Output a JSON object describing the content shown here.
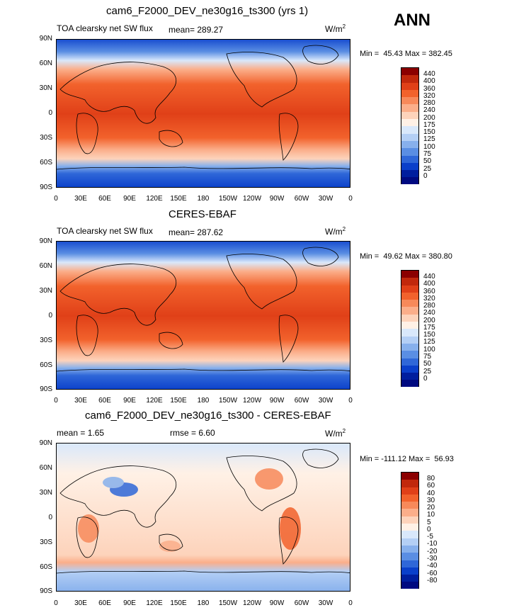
{
  "season": "ANN",
  "panels": [
    {
      "title": "cam6_F2000_DEV_ne30g16_ts300 (yrs 1)",
      "variable": "TOA clearsky net SW flux",
      "stat_text": "mean=  289.27",
      "units": "W/m",
      "units_sup": "2",
      "minmax": "Min =  45.43 Max = 382.45"
    },
    {
      "title": "CERES-EBAF",
      "variable": "TOA clearsky net SW flux",
      "stat_text": "mean=  287.62",
      "units": "W/m",
      "units_sup": "2",
      "minmax": "Min =  49.62 Max = 380.80"
    },
    {
      "title": "cam6_F2000_DEV_ne30g16_ts300 - CERES-EBAF",
      "stat_text": "mean =    1.65",
      "rmse_text": "rmse =    6.60",
      "units": "W/m",
      "units_sup": "2",
      "minmax": "Min = -111.12 Max =  56.93"
    }
  ],
  "lat_labels": [
    "90N",
    "60N",
    "30N",
    "0",
    "30S",
    "60S",
    "90S"
  ],
  "lon_labels": [
    "0",
    "30E",
    "60E",
    "90E",
    "120E",
    "150E",
    "180",
    "150W",
    "120W",
    "90W",
    "60W",
    "30W",
    "0"
  ],
  "colorbar_abs": {
    "labels": [
      "440",
      "400",
      "360",
      "320",
      "280",
      "240",
      "200",
      "175",
      "150",
      "125",
      "100",
      "75",
      "50",
      "25",
      "0"
    ],
    "colors": [
      "#8b0000",
      "#c1280c",
      "#e04018",
      "#f2622c",
      "#f7895a",
      "#fbae8a",
      "#fdd3bb",
      "#fff1e6",
      "#d9e8fb",
      "#b4cff5",
      "#87b0ec",
      "#5a8ee3",
      "#2f67d8",
      "#0a3fca",
      "#001e9e",
      "#000a80"
    ]
  },
  "colorbar_diff": {
    "labels": [
      "80",
      "60",
      "40",
      "30",
      "20",
      "10",
      "5",
      "0",
      "-5",
      "-10",
      "-20",
      "-30",
      "-40",
      "-60",
      "-80"
    ],
    "colors": [
      "#8b0000",
      "#c1280c",
      "#e04018",
      "#f2622c",
      "#f7895a",
      "#fbae8a",
      "#fdd3bb",
      "#fff1e6",
      "#d9e8fb",
      "#b4cff5",
      "#87b0ec",
      "#5a8ee3",
      "#2f67d8",
      "#0a3fca",
      "#001e9e",
      "#000a80"
    ]
  }
}
